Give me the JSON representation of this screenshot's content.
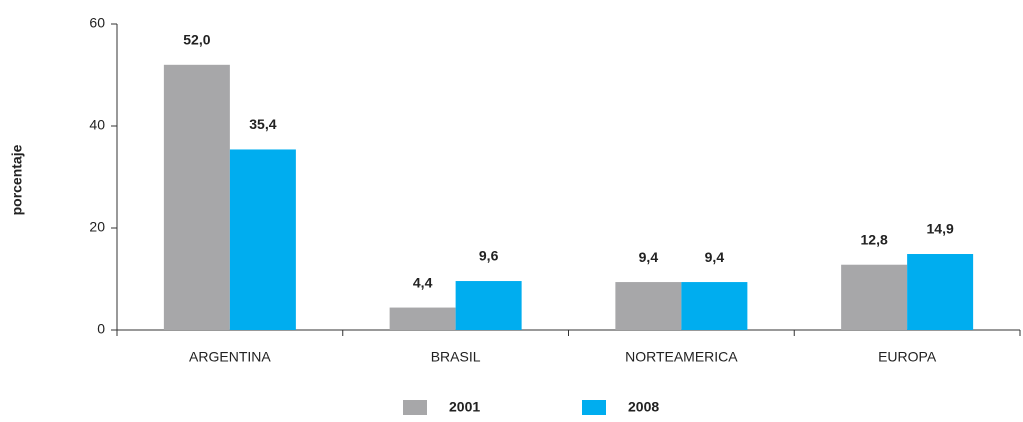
{
  "chart_data": {
    "type": "bar",
    "y_label": "porcentaje",
    "categories": [
      "ARGENTINA",
      "BRASIL",
      "NORTEAMERICA",
      "EUROPA"
    ],
    "series": [
      {
        "name": "2001",
        "color": "#a7a7a9",
        "values": [
          52.0,
          4.4,
          9.4,
          12.8
        ],
        "value_labels": [
          "52,0",
          "4,4",
          "9,4",
          "12,8"
        ]
      },
      {
        "name": "2008",
        "color": "#00adef",
        "values": [
          35.4,
          9.6,
          9.4,
          14.9
        ],
        "value_labels": [
          "35,4",
          "9,6",
          "9,4",
          "14,9"
        ]
      }
    ],
    "ylim": [
      0,
      60
    ],
    "yticks": [
      0,
      20,
      40,
      60
    ],
    "grid": false,
    "legend": "bottom"
  }
}
